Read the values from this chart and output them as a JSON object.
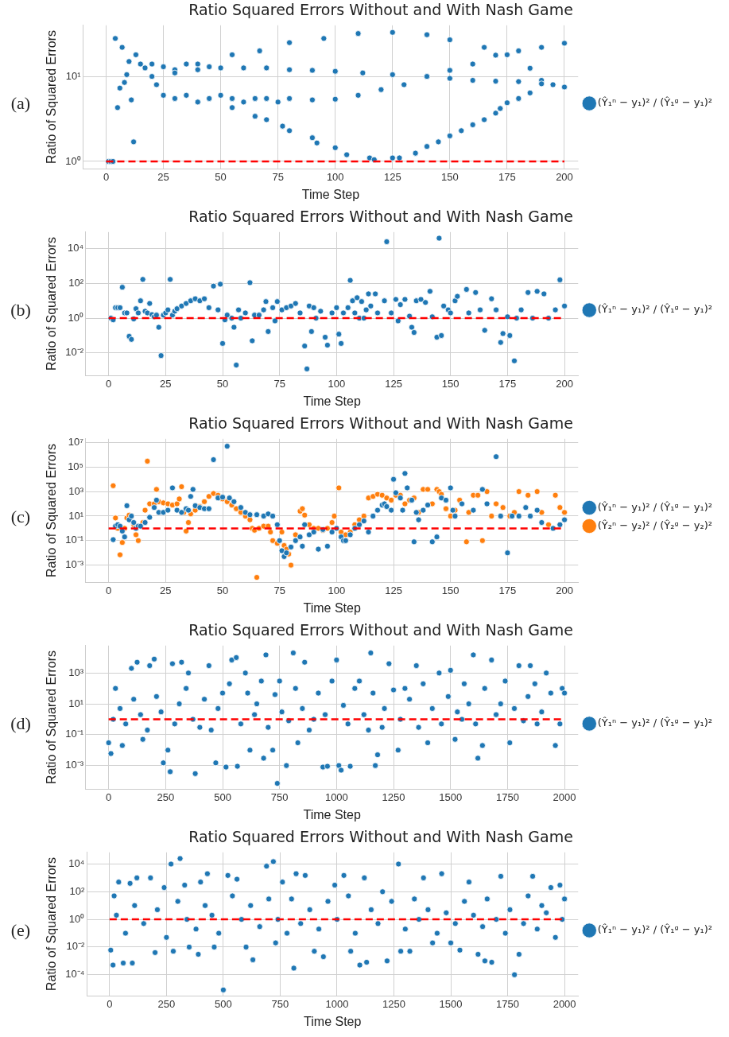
{
  "chart_data": [
    {
      "type": "scatter",
      "title": "Ratio Squared Errors Without and With Nash Game",
      "xlabel": "Time Step",
      "ylabel": "Ratio of Squared Errors",
      "annotations": [
        "(a)"
      ],
      "xlim": [
        -10,
        206
      ],
      "xticks": [
        0,
        25,
        50,
        75,
        100,
        125,
        150,
        175,
        200
      ],
      "ylim": [
        0.82,
        40
      ],
      "yticks": [
        {
          "value": 1,
          "label": "10⁰"
        },
        {
          "value": 10,
          "label": "10¹"
        }
      ],
      "log": "y",
      "grid": true,
      "legend": "right",
      "marker": "circle",
      "ref_lines": [
        {
          "axis": "y",
          "value": 1,
          "color": "#ff0000",
          "line_style": "dashed"
        }
      ],
      "series": [
        {
          "name": "(Ŷ₁ⁿ − y₁)² / (Ŷ₁ᵍ − y₁)²",
          "color": "#1f77b4",
          "x": [
            1,
            2,
            3,
            4,
            7,
            13,
            17,
            20,
            22,
            25,
            30,
            35,
            40,
            45,
            50,
            55,
            60,
            65,
            70,
            75,
            80,
            90,
            100,
            110,
            120,
            130,
            140,
            150,
            160,
            170,
            180,
            190,
            200,
            5,
            6,
            8,
            9,
            10,
            15,
            20,
            25,
            30,
            35,
            40,
            45,
            55,
            67,
            80,
            95,
            110,
            125,
            140,
            150,
            165,
            175,
            185,
            190,
            200,
            11,
            12,
            30,
            40,
            50,
            60,
            70,
            80,
            90,
            100,
            112,
            125,
            140,
            150,
            160,
            170,
            180,
            190,
            25,
            40,
            55,
            65,
            70,
            77,
            80,
            90,
            92,
            100,
            105,
            115,
            117,
            125,
            128,
            135,
            140,
            145,
            150,
            155,
            160,
            165,
            170,
            172,
            175,
            180,
            185,
            195
          ],
          "values": [
            1,
            1,
            1,
            28,
            22,
            18,
            12.6,
            10,
            8,
            6,
            5.5,
            6,
            5,
            5.5,
            6,
            5.5,
            5,
            5.5,
            5.5,
            5,
            5.5,
            5.3,
            5.4,
            6,
            7,
            8,
            10,
            11.8,
            14,
            17.8,
            20,
            22,
            24.6,
            4.3,
            7.3,
            8.5,
            10.5,
            15,
            14,
            14,
            13,
            12,
            14,
            14,
            13,
            18,
            20,
            25,
            28,
            32,
            33,
            31,
            27,
            22,
            18,
            12.5,
            9,
            7.5,
            5.3,
            1.7,
            11,
            12,
            12.6,
            12.6,
            12.6,
            12,
            11.8,
            11.5,
            11,
            10.5,
            10,
            9.5,
            9,
            8.8,
            8.7,
            8.2,
            6,
            5,
            4.3,
            3.4,
            3.1,
            2.6,
            2.3,
            1.9,
            1.65,
            1.45,
            1.2,
            1.1,
            1.05,
            1.1,
            1.1,
            1.25,
            1.5,
            1.7,
            2,
            2.3,
            2.7,
            3.1,
            3.7,
            4.2,
            4.9,
            5.5,
            6.4,
            8
          ]
        }
      ]
    },
    {
      "type": "scatter",
      "title": "Ratio Squared Errors Without and With Nash Game",
      "xlabel": "Time Step",
      "ylabel": "Ratio of Squared Errors",
      "annotations": [
        "(b)"
      ],
      "xlim": [
        -10,
        206
      ],
      "xticks": [
        0,
        25,
        50,
        75,
        100,
        125,
        150,
        175,
        200
      ],
      "ylim": [
        0.0005,
        90000
      ],
      "yticks": [
        {
          "value": 0.01,
          "label": "10⁻²"
        },
        {
          "value": 1,
          "label": "10⁰"
        },
        {
          "value": 100,
          "label": "10²"
        },
        {
          "value": 10000,
          "label": "10⁴"
        }
      ],
      "log": "y",
      "grid": true,
      "legend": "right",
      "marker": "circle",
      "ref_lines": [
        {
          "axis": "y",
          "value": 1,
          "color": "#ff0000",
          "line_style": "dashed"
        }
      ],
      "series": [
        {
          "name": "(Ŷ₁ⁿ − y₁)² / (Ŷ₁ᵍ − y₁)²",
          "color": "#1f77b4",
          "x": [
            1,
            2,
            3,
            4,
            5,
            6,
            7,
            8,
            9,
            10,
            11,
            12,
            13,
            14,
            15,
            16,
            17,
            18,
            19,
            20,
            21,
            22,
            23,
            24,
            25,
            26,
            27,
            28,
            29,
            30,
            32,
            34,
            36,
            38,
            40,
            42,
            44,
            46,
            48,
            49,
            50,
            51,
            52,
            54,
            55,
            56,
            57,
            58,
            60,
            62,
            63,
            64,
            66,
            68,
            69,
            70,
            72,
            73,
            74,
            76,
            78,
            80,
            82,
            84,
            86,
            87,
            88,
            89,
            90,
            91,
            93,
            95,
            96,
            98,
            100,
            101,
            102,
            103,
            105,
            106,
            107,
            108,
            109,
            110,
            111,
            112,
            113,
            114,
            115,
            117,
            118,
            121,
            122,
            124,
            126,
            127,
            128,
            130,
            132,
            133,
            134,
            135,
            137,
            139,
            141,
            142,
            144,
            145,
            146,
            147,
            149,
            150,
            152,
            153,
            157,
            158,
            161,
            163,
            165,
            168,
            170,
            172,
            173,
            175,
            176,
            178,
            179,
            181,
            184,
            186,
            188,
            191,
            193,
            196,
            198,
            200
          ],
          "values": [
            1,
            0.8,
            4,
            4,
            4,
            60,
            2,
            2,
            0.09,
            0.06,
            0.9,
            3.5,
            2,
            10,
            170,
            2.5,
            2,
            7,
            1.6,
            1.2,
            1.5,
            0.3,
            0.007,
            1.5,
            2,
            3,
            170,
            1.5,
            2.5,
            3.5,
            5,
            7,
            10,
            13,
            10,
            13,
            4,
            70,
            3,
            90,
            0.035,
            0.8,
            1.5,
            1,
            0.3,
            0.002,
            3,
            1,
            2,
            110,
            0.05,
            1.5,
            1.5,
            3,
            9,
            0.17,
            4,
            0.7,
            9,
            3,
            4,
            5,
            7,
            2,
            0.025,
            0.0012,
            5,
            0.17,
            4,
            1,
            2.5,
            0.08,
            0.028,
            2,
            4,
            0.12,
            0.035,
            2,
            4,
            150,
            10,
            2,
            15,
            1,
            9,
            1,
            3,
            25,
            5,
            25,
            2,
            10,
            25000,
            2,
            12,
            0.7,
            6,
            12,
            1.3,
            0.3,
            0.15,
            10,
            12,
            8,
            35,
            1.2,
            0.08,
            40000,
            0.1,
            5,
            3,
            2,
            10,
            18,
            45,
            2,
            30,
            3,
            0.2,
            13,
            3,
            0.04,
            0.13,
            1.2,
            0.1,
            0.0035,
            1,
            3,
            30,
            1,
            35,
            25,
            1,
            3,
            160,
            5
          ]
        }
      ]
    },
    {
      "type": "scatter",
      "title": "Ratio Squared Errors Without and With Nash Game",
      "xlabel": "Time Step",
      "ylabel": "Ratio of Squared Errors",
      "annotations": [
        "(c)"
      ],
      "xlim": [
        -10,
        206
      ],
      "xticks": [
        0,
        25,
        50,
        75,
        100,
        125,
        150,
        175,
        200
      ],
      "ylim": [
        4e-05,
        20000000
      ],
      "yticks": [
        {
          "value": 0.001,
          "label": "10⁻³"
        },
        {
          "value": 0.1,
          "label": "10⁻¹"
        },
        {
          "value": 10,
          "label": "10¹"
        },
        {
          "value": 1000,
          "label": "10³"
        },
        {
          "value": 100000,
          "label": "10⁵"
        },
        {
          "value": 10000000,
          "label": "10⁷"
        }
      ],
      "log": "y",
      "grid": true,
      "legend": "right",
      "marker": "circle",
      "ref_lines": [
        {
          "axis": "y",
          "value": 1,
          "color": "#ff0000",
          "line_style": "dashed"
        }
      ],
      "series": [
        {
          "name": "(Ŷ₁ⁿ − y₁)² / (Ŷ₁ᵍ − y₁)²",
          "color": "#1f77b4",
          "x": [
            2,
            3,
            4,
            5,
            6,
            7,
            8,
            9,
            10,
            11,
            12,
            13,
            14,
            16,
            18,
            20,
            21,
            22,
            24,
            26,
            28,
            30,
            32,
            34,
            35,
            36,
            37,
            38,
            40,
            42,
            44,
            46,
            48,
            50,
            52,
            53,
            55,
            58,
            60,
            62,
            65,
            68,
            70,
            72,
            74,
            75,
            76,
            77,
            78,
            80,
            82,
            84,
            85,
            86,
            88,
            90,
            92,
            94,
            96,
            98,
            100,
            102,
            103,
            104,
            106,
            108,
            110,
            112,
            114,
            116,
            118,
            120,
            121,
            122,
            124,
            125,
            126,
            128,
            129,
            130,
            131,
            133,
            134,
            135,
            136,
            138,
            140,
            142,
            144,
            146,
            148,
            150,
            151,
            152,
            155,
            160,
            164,
            166,
            170,
            172,
            175,
            177,
            180,
            183,
            185,
            188,
            190,
            195,
            198,
            200
          ],
          "values": [
            0.12,
            1.5,
            2,
            1.5,
            0.6,
            0.2,
            70,
            5,
            10,
            3,
            1,
            1.5,
            1.5,
            3,
            8,
            50,
            200,
            20,
            20,
            30,
            2000,
            30,
            20,
            40,
            30,
            400,
            1500,
            70,
            50,
            40,
            40,
            400000,
            300,
            350,
            5000000,
            300,
            150,
            50,
            20,
            13,
            13,
            10,
            15,
            10,
            2,
            0.1,
            0.015,
            0.005,
            0.01,
            0.03,
            0.1,
            0.2,
            0.035,
            2,
            0.3,
            0.5,
            0.02,
            0.8,
            0.035,
            0.5,
            1,
            0.2,
            0.1,
            0.1,
            0.3,
            1,
            2,
            4,
            0.5,
            10,
            30,
            80,
            100,
            60,
            30,
            10000,
            800,
            300,
            30,
            30000,
            2000,
            200,
            0.08,
            20,
            5,
            30,
            80,
            0.08,
            0.2,
            300,
            200,
            2000,
            30,
            10,
            100,
            30,
            1500,
            100,
            700000,
            10,
            0.01,
            10,
            10,
            50,
            10,
            30,
            3,
            1,
            2,
            5
          ]
        },
        {
          "name": "(Ŷ₂ⁿ − y₂)² / (Ŷ₂ᵍ − y₂)²",
          "color": "#ff7f0e",
          "x": [
            2,
            3,
            4,
            5,
            6,
            7,
            8,
            9,
            10,
            11,
            12,
            13,
            15,
            16,
            17,
            18,
            20,
            21,
            22,
            24,
            26,
            28,
            30,
            31,
            32,
            33,
            34,
            35,
            36,
            38,
            40,
            42,
            44,
            46,
            48,
            50,
            52,
            54,
            56,
            58,
            60,
            62,
            63,
            64,
            65,
            66,
            68,
            70,
            71,
            72,
            74,
            76,
            77,
            78,
            79,
            80,
            82,
            84,
            85,
            86,
            88,
            90,
            92,
            94,
            96,
            98,
            99,
            101,
            102,
            104,
            106,
            108,
            110,
            112,
            114,
            116,
            118,
            120,
            122,
            124,
            126,
            128,
            130,
            132,
            134,
            136,
            138,
            140,
            142,
            144,
            145,
            146,
            148,
            150,
            152,
            154,
            157,
            158,
            160,
            162,
            164,
            166,
            168,
            170,
            173,
            176,
            178,
            180,
            184,
            188,
            190,
            193,
            196,
            198,
            200
          ],
          "values": [
            3000,
            7,
            1,
            0.007,
            0.07,
            1,
            7,
            12,
            10,
            2,
            0.3,
            0.1,
            3,
            30,
            300000,
            100,
            100,
            1500,
            150,
            120,
            100,
            80,
            100,
            250,
            2500,
            20,
            0.6,
            3,
            15,
            30,
            60,
            150,
            400,
            700,
            500,
            250,
            150,
            80,
            40,
            20,
            10,
            5,
            1,
            0.7,
            0.0001,
            1,
            1.5,
            1.5,
            0.5,
            0.1,
            0.06,
            0.5,
            0.04,
            0.02,
            0.008,
            0.001,
            0.3,
            25,
            40,
            12,
            2,
            1,
            1,
            0.7,
            1,
            3,
            10,
            2000,
            0.5,
            0.3,
            0.5,
            2,
            5,
            10,
            300,
            400,
            600,
            500,
            300,
            200,
            500,
            500,
            100,
            200,
            300,
            20,
            1500,
            1500,
            100,
            1500,
            1000,
            600,
            40,
            10,
            30,
            200,
            0.08,
            20,
            500,
            500,
            0.1,
            1000,
            10,
            100,
            50,
            10,
            20,
            1000,
            500,
            1000,
            20,
            2,
            500,
            50,
            20
          ]
        }
      ]
    },
    {
      "type": "scatter",
      "title": "Ratio Squared Errors Without and With Nash Game",
      "xlabel": "Time Step",
      "ylabel": "Ratio of Squared Errors",
      "annotations": [
        "(d)"
      ],
      "xlim": [
        -100,
        2060
      ],
      "xticks": [
        0,
        250,
        500,
        750,
        1000,
        1250,
        1500,
        1750,
        2000
      ],
      "ylim": [
        3e-05,
        60000
      ],
      "yticks": [
        {
          "value": 0.001,
          "label": "10⁻³"
        },
        {
          "value": 0.1,
          "label": "10⁻¹"
        },
        {
          "value": 10,
          "label": "10¹"
        },
        {
          "value": 1000,
          "label": "10³"
        }
      ],
      "log": "y",
      "grid": true,
      "legend": "right",
      "marker": "circle",
      "ref_lines": [
        {
          "axis": "y",
          "value": 1,
          "color": "#ff0000",
          "line_style": "dashed"
        }
      ],
      "series": [
        {
          "name": "(Ŷ₁ⁿ − y₁)² / (Ŷ₁ᵍ − y₁)²",
          "color": "#1f77b4",
          "x": [
            0,
            10,
            20,
            30,
            50,
            60,
            75,
            100,
            110,
            125,
            140,
            150,
            170,
            180,
            200,
            210,
            230,
            240,
            260,
            270,
            280,
            290,
            310,
            320,
            340,
            350,
            370,
            380,
            400,
            420,
            440,
            450,
            470,
            480,
            500,
            515,
            530,
            540,
            560,
            565,
            580,
            600,
            610,
            620,
            640,
            650,
            670,
            680,
            690,
            700,
            720,
            730,
            740,
            750,
            760,
            780,
            790,
            810,
            820,
            830,
            850,
            860,
            880,
            900,
            920,
            940,
            950,
            960,
            980,
            1000,
            1010,
            1020,
            1030,
            1050,
            1060,
            1080,
            1100,
            1120,
            1140,
            1150,
            1160,
            1170,
            1180,
            1200,
            1210,
            1230,
            1250,
            1270,
            1280,
            1300,
            1320,
            1350,
            1360,
            1380,
            1400,
            1420,
            1450,
            1460,
            1490,
            1500,
            1520,
            1530,
            1550,
            1560,
            1580,
            1600,
            1610,
            1620,
            1640,
            1650,
            1680,
            1700,
            1720,
            1740,
            1760,
            1780,
            1800,
            1820,
            1840,
            1850,
            1870,
            1880,
            1900,
            1920,
            1940,
            1960,
            1980,
            1990,
            2000
          ],
          "values": [
            0.03,
            0.006,
            1,
            100,
            5,
            0.02,
            0.5,
            2000,
            20,
            5000,
            2,
            0.05,
            0.2,
            3000,
            8000,
            30,
            3,
            0.0015,
            0.01,
            0.0004,
            4000,
            0.5,
            10,
            5000,
            100,
            1000,
            1,
            0.0003,
            0.3,
            20,
            3000,
            0.2,
            0.0015,
            5,
            50,
            0.0008,
            200,
            7000,
            10000,
            0.0009,
            0.5,
            1000,
            50,
            0.01,
            2,
            10,
            300,
            0.003,
            15000,
            0.3,
            0.01,
            40,
            7e-05,
            300,
            3,
            0.001,
            0.8,
            20000,
            100,
            0.03,
            5,
            5000,
            0.2,
            1,
            50,
            0.0008,
            2,
            0.0009,
            300,
            7000,
            0.001,
            0.0005,
            8,
            0.5,
            0.0009,
            100,
            300,
            2,
            0.2,
            20000,
            50,
            0.001,
            0.005,
            0.3,
            5,
            4000,
            80,
            0.01,
            1,
            100,
            20,
            3000,
            0.3,
            200,
            0.03,
            5,
            1000,
            0.5,
            30,
            1500,
            0.05,
            3,
            1,
            200,
            10,
            15000,
            0.5,
            0.003,
            0.02,
            100,
            7000,
            2,
            10,
            300,
            0.03,
            5,
            3000,
            0.8,
            30,
            3000,
            200,
            0.5,
            3,
            1000,
            50,
            0.02,
            0.5,
            100,
            50
          ]
        }
      ]
    },
    {
      "type": "scatter",
      "title": "Ratio Squared Errors Without and With Nash Game",
      "xlabel": "Time Step",
      "ylabel": "Ratio of Squared Errors",
      "annotations": [
        "(e)"
      ],
      "xlim": [
        -100,
        2060
      ],
      "xticks": [
        0,
        250,
        500,
        750,
        1000,
        1250,
        1500,
        1750,
        2000
      ],
      "ylim": [
        3e-06,
        70000
      ],
      "yticks": [
        {
          "value": 0.0001,
          "label": "10⁻⁴"
        },
        {
          "value": 0.01,
          "label": "10⁻²"
        },
        {
          "value": 1,
          "label": "10⁰"
        },
        {
          "value": 100,
          "label": "10²"
        },
        {
          "value": 10000,
          "label": "10⁴"
        }
      ],
      "log": "y",
      "grid": true,
      "legend": "right",
      "marker": "circle",
      "ref_lines": [
        {
          "axis": "y",
          "value": 1,
          "color": "#ff0000",
          "line_style": "dashed"
        }
      ],
      "series": [
        {
          "name": "(Ŷ₁ⁿ − y₁)² / (Ŷ₁ᵍ − y₁)²",
          "color": "#1f77b4",
          "x": [
            5,
            15,
            20,
            30,
            40,
            60,
            70,
            90,
            100,
            110,
            120,
            150,
            180,
            200,
            210,
            240,
            250,
            270,
            280,
            300,
            310,
            330,
            340,
            350,
            380,
            390,
            400,
            420,
            430,
            450,
            460,
            480,
            500,
            520,
            540,
            560,
            580,
            600,
            620,
            630,
            660,
            690,
            700,
            720,
            730,
            740,
            760,
            780,
            800,
            810,
            820,
            840,
            860,
            880,
            900,
            920,
            940,
            960,
            990,
            1000,
            1030,
            1050,
            1060,
            1080,
            1100,
            1120,
            1130,
            1150,
            1180,
            1200,
            1220,
            1240,
            1270,
            1280,
            1300,
            1320,
            1340,
            1360,
            1380,
            1400,
            1420,
            1440,
            1460,
            1480,
            1500,
            1520,
            1540,
            1560,
            1580,
            1600,
            1620,
            1640,
            1650,
            1660,
            1680,
            1700,
            1720,
            1740,
            1760,
            1780,
            1800,
            1820,
            1840,
            1860,
            1880,
            1900,
            1920,
            1940,
            1960,
            1980,
            1990,
            2000
          ],
          "values": [
            0.006,
            0.0005,
            50,
            2,
            500,
            0.0007,
            0.1,
            400,
            0.0007,
            10,
            1000,
            0.5,
            1000,
            0.004,
            5,
            200,
            0.05,
            10000,
            0.005,
            20,
            25000,
            300,
            1,
            0.01,
            0.2,
            0.003,
            500,
            10,
            2000,
            2,
            0.01,
            0.1,
            8e-06,
            1500,
            50,
            800,
            1,
            0.01,
            10,
            0.0012,
            0.3,
            7000,
            30,
            15000,
            0.02,
            1,
            500,
            0.1,
            30,
            0.0003,
            2000,
            0.5,
            1500,
            5,
            0.005,
            0.2,
            0.002,
            20,
            300,
            1,
            1500,
            50,
            0.005,
            0.1,
            0.0005,
            1000,
            0.0008,
            5,
            0.5,
            100,
            0.001,
            20,
            10000,
            0.005,
            0.2,
            0.005,
            30,
            1,
            1000,
            5,
            0.02,
            0.1,
            2000,
            3,
            0.02,
            0.5,
            0.006,
            20,
            500,
            2,
            0.003,
            0.3,
            0.001,
            30,
            0.0008,
            1,
            1300,
            0.1,
            5,
            0.0001,
            0.003,
            0.5,
            50,
            1300,
            0.2,
            10,
            3,
            200,
            0.05,
            300,
            1,
            30
          ]
        }
      ]
    }
  ]
}
